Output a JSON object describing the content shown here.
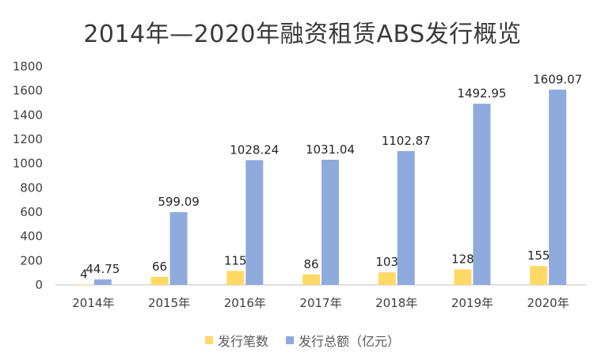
{
  "chart_data": {
    "type": "bar",
    "title": "2014年—2020年融资租赁ABS发行概览",
    "categories": [
      "2014年",
      "2015年",
      "2016年",
      "2017年",
      "2018年",
      "2019年",
      "2020年"
    ],
    "series": [
      {
        "name": "发行笔数",
        "values": [
          4,
          66,
          115,
          86,
          103,
          128,
          155
        ],
        "color": "#FFD966"
      },
      {
        "name": "发行总额（亿元）",
        "values": [
          44.75,
          599.09,
          1028.24,
          1031.04,
          1102.87,
          1492.95,
          1609.07
        ],
        "color": "#8FAADC"
      }
    ],
    "ylim": [
      0,
      1800
    ],
    "yticks": [
      0,
      200,
      400,
      600,
      800,
      1000,
      1200,
      1400,
      1600,
      1800
    ],
    "grid": false,
    "legend": "bottom"
  }
}
